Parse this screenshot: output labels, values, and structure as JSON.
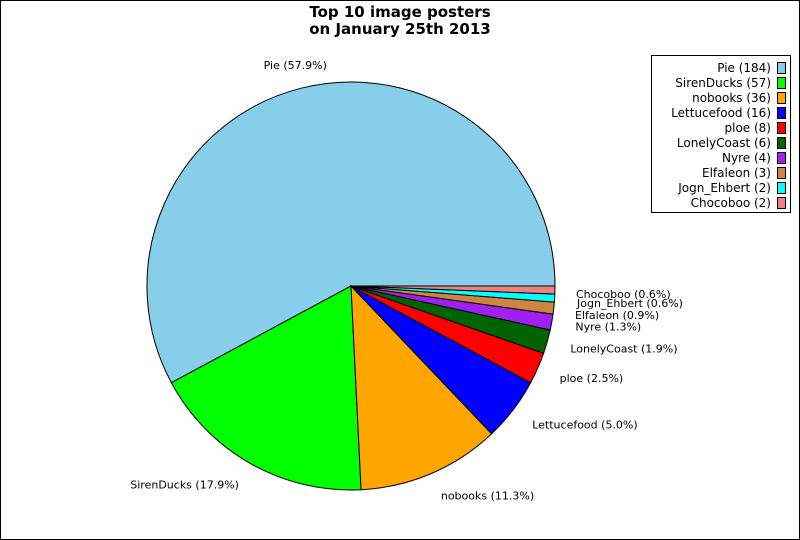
{
  "chart_data": {
    "type": "pie",
    "title_line1": "Top 10 image posters",
    "title_line2": "on January 25th 2013",
    "categories": [
      "Pie",
      "SirenDucks",
      "nobooks",
      "Lettucefood",
      "ploe",
      "LonelyCoast",
      "Nyre",
      "Elfaleon",
      "Jogn_Ehbert",
      "Chocoboo"
    ],
    "values": [
      184,
      57,
      36,
      16,
      8,
      6,
      4,
      3,
      2,
      2
    ],
    "slice_labels": [
      "Pie (57.9%)",
      "SirenDucks (17.9%)",
      "nobooks (11.3%)",
      "Lettucefood (5.0%)",
      "ploe (2.5%)",
      "LonelyCoast (1.9%)",
      "Nyre (1.3%)",
      "Elfaleon (0.9%)",
      "Jogn_Ehbert (0.6%)",
      "Chocoboo (0.6%)"
    ],
    "legend_labels": [
      "Pie (184)",
      "SirenDucks (57)",
      "nobooks (36)",
      "Lettucefood (16)",
      "ploe (8)",
      "LonelyCoast (6)",
      "Nyre (4)",
      "Elfaleon (3)",
      "Jogn_Ehbert (2)",
      "Chocoboo (2)"
    ],
    "colors": [
      "#87ceeb",
      "#00ff00",
      "#ffa500",
      "#0000ff",
      "#ff0000",
      "#006400",
      "#a020f0",
      "#cd853f",
      "#00ffff",
      "#f08080"
    ],
    "legend_position": "top-right",
    "start_angle": "3 o'clock",
    "direction": "counterclockwise"
  }
}
